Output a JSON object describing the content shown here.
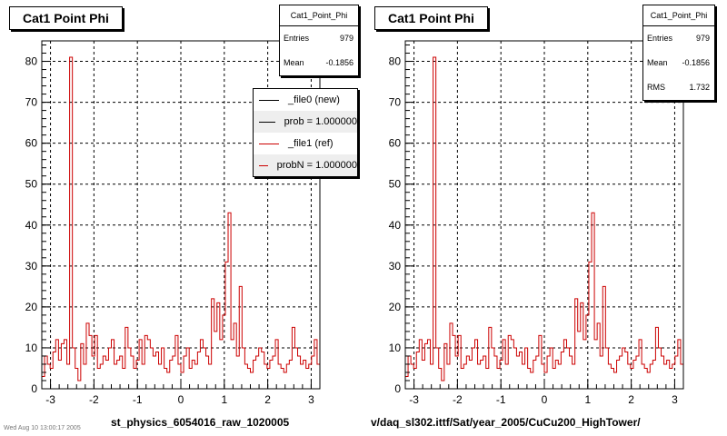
{
  "chart_data": [
    {
      "type": "histogram",
      "title": "Cat1 Point Phi",
      "xlabel": "st_physics_6054016_raw_1020005",
      "xlim": [
        -3.2,
        3.2
      ],
      "ylim": [
        0,
        85
      ],
      "xticks": [
        -3,
        -2,
        -1,
        0,
        1,
        2,
        3
      ],
      "yticks": [
        0,
        10,
        20,
        30,
        40,
        50,
        60,
        70,
        80
      ],
      "grid": true,
      "bins": 100,
      "series": [
        {
          "name": "_file1 (ref)",
          "color": "#cc0000",
          "values": [
            3,
            8,
            6,
            5,
            9,
            12,
            7,
            11,
            12,
            6,
            81,
            10,
            5,
            2,
            11,
            6,
            16,
            13,
            8,
            13,
            5,
            6,
            8,
            7,
            10,
            12,
            6,
            7,
            8,
            5,
            15,
            10,
            8,
            5,
            7,
            12,
            6,
            13,
            12,
            10,
            8,
            9,
            6,
            10,
            5,
            4,
            7,
            8,
            13,
            6,
            4,
            8,
            10,
            5,
            7,
            6,
            9,
            12,
            10,
            8,
            6,
            22,
            14,
            21,
            12,
            18,
            31,
            43,
            12,
            16,
            8,
            25,
            10,
            6,
            5,
            4,
            7,
            8,
            10,
            9,
            6,
            5,
            7,
            8,
            12,
            6,
            5,
            4,
            6,
            7,
            15,
            10,
            8,
            6,
            7,
            5,
            6,
            8,
            12,
            6
          ]
        }
      ],
      "stats": {
        "name": "Cat1_Point_Phi",
        "entries_label": "Entries",
        "entries": "979",
        "mean_label": "Mean",
        "mean": "-0.1856"
      },
      "legend": {
        "placement": "top-right",
        "entries": [
          {
            "label": "_file0 (new)",
            "color": "#000000"
          },
          {
            "label": "prob = 1.000000",
            "color": "#000000"
          },
          {
            "label": "_file1 (ref)",
            "color": "#cc0000"
          },
          {
            "label": "probN = 1.000000",
            "color": "#cc0000"
          }
        ]
      }
    },
    {
      "type": "histogram",
      "title": "Cat1 Point Phi",
      "xlabel": "v/daq_sl302.ittf/Sat/year_2005/CuCu200_HighTower/",
      "xlim": [
        -3.2,
        3.2
      ],
      "ylim": [
        0,
        85
      ],
      "xticks": [
        -3,
        -2,
        -1,
        0,
        1,
        2,
        3
      ],
      "yticks": [
        0,
        10,
        20,
        30,
        40,
        50,
        60,
        70,
        80
      ],
      "grid": true,
      "bins": 100,
      "series": [
        {
          "name": "Cat1_Point_Phi",
          "color": "#cc0000",
          "values": [
            3,
            8,
            6,
            5,
            9,
            12,
            7,
            11,
            12,
            6,
            81,
            10,
            5,
            2,
            11,
            6,
            16,
            13,
            8,
            13,
            5,
            6,
            8,
            7,
            10,
            12,
            6,
            7,
            8,
            5,
            15,
            10,
            8,
            5,
            7,
            12,
            6,
            13,
            12,
            10,
            8,
            9,
            6,
            10,
            5,
            4,
            7,
            8,
            13,
            6,
            4,
            8,
            10,
            5,
            7,
            6,
            9,
            12,
            10,
            8,
            6,
            22,
            14,
            21,
            12,
            18,
            31,
            43,
            12,
            16,
            8,
            25,
            10,
            6,
            5,
            4,
            7,
            8,
            10,
            9,
            6,
            5,
            7,
            8,
            12,
            6,
            5,
            4,
            6,
            7,
            15,
            10,
            8,
            6,
            7,
            5,
            6,
            8,
            12,
            6
          ]
        }
      ],
      "stats": {
        "name": "Cat1_Point_Phi",
        "entries_label": "Entries",
        "entries": "979",
        "mean_label": "Mean",
        "mean": "-0.1856",
        "rms_label": "RMS",
        "rms": "1.732"
      }
    }
  ],
  "footer_text": "Wed Aug 10 13:00:17 2005"
}
